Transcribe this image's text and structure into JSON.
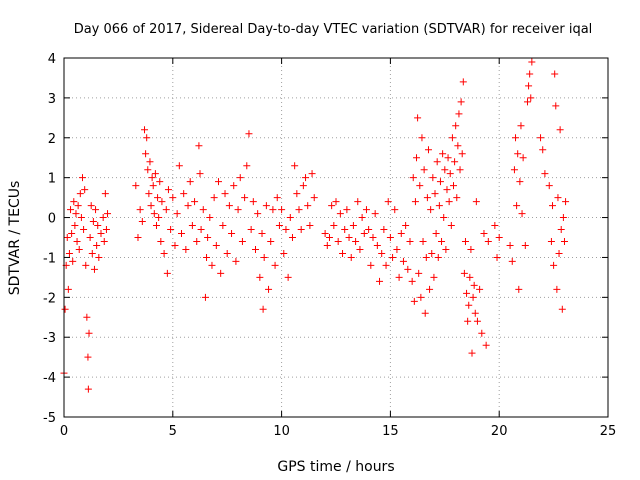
{
  "chart_data": {
    "type": "scatter",
    "title": "Day 066 of 2017, Sidereal Day-to-day VTEC variation (SDTVAR) for receiver iqal",
    "xlabel": "GPS time / hours",
    "ylabel": "SDTVAR / TECUs",
    "xlim": [
      0,
      25
    ],
    "ylim": [
      -5,
      4
    ],
    "xticks": [
      "0",
      "5",
      "10",
      "15",
      "20",
      "25"
    ],
    "yticks": [
      "4",
      "3",
      "2",
      "1",
      "0",
      "-1",
      "-2",
      "-3",
      "-4",
      "-5"
    ],
    "grid": true,
    "marker": "plus",
    "color": "#ff0000",
    "series": [
      {
        "name": "SDTVAR",
        "points": [
          [
            0.0,
            -3.9
          ],
          [
            0.05,
            -2.3
          ],
          [
            0.1,
            -1.2
          ],
          [
            0.15,
            -0.5
          ],
          [
            0.2,
            -1.8
          ],
          [
            0.25,
            -0.9
          ],
          [
            0.3,
            0.2
          ],
          [
            0.35,
            -0.4
          ],
          [
            0.4,
            -1.1
          ],
          [
            0.45,
            0.4
          ],
          [
            0.5,
            -0.2
          ],
          [
            0.55,
            0.1
          ],
          [
            0.6,
            -0.6
          ],
          [
            0.65,
            0.3
          ],
          [
            0.7,
            -0.8
          ],
          [
            0.75,
            0.6
          ],
          [
            0.8,
            0.0
          ],
          [
            0.85,
            1.0
          ],
          [
            0.9,
            -0.3
          ],
          [
            0.95,
            0.7
          ],
          [
            1.0,
            -1.2
          ],
          [
            1.05,
            -2.5
          ],
          [
            1.1,
            -3.5
          ],
          [
            1.12,
            -4.3
          ],
          [
            1.15,
            -2.9
          ],
          [
            1.2,
            -0.5
          ],
          [
            1.25,
            0.3
          ],
          [
            1.3,
            -0.9
          ],
          [
            1.35,
            -0.1
          ],
          [
            1.4,
            -1.3
          ],
          [
            1.45,
            0.2
          ],
          [
            1.5,
            -0.7
          ],
          [
            1.55,
            -0.2
          ],
          [
            1.6,
            -1.0
          ],
          [
            1.7,
            -0.4
          ],
          [
            1.8,
            0.0
          ],
          [
            1.85,
            -0.6
          ],
          [
            1.9,
            0.6
          ],
          [
            1.95,
            -0.3
          ],
          [
            2.0,
            0.1
          ],
          [
            3.3,
            0.8
          ],
          [
            3.4,
            -0.5
          ],
          [
            3.5,
            0.2
          ],
          [
            3.6,
            -0.1
          ],
          [
            3.7,
            2.2
          ],
          [
            3.75,
            1.6
          ],
          [
            3.8,
            2.0
          ],
          [
            3.85,
            1.2
          ],
          [
            3.9,
            0.6
          ],
          [
            3.95,
            1.4
          ],
          [
            4.0,
            0.3
          ],
          [
            4.05,
            1.0
          ],
          [
            4.1,
            0.8
          ],
          [
            4.15,
            0.1
          ],
          [
            4.2,
            1.1
          ],
          [
            4.25,
            -0.2
          ],
          [
            4.3,
            0.5
          ],
          [
            4.35,
            0.0
          ],
          [
            4.4,
            0.9
          ],
          [
            4.45,
            -0.6
          ],
          [
            4.5,
            0.4
          ],
          [
            4.6,
            -0.9
          ],
          [
            4.7,
            0.2
          ],
          [
            4.75,
            -1.4
          ],
          [
            4.8,
            0.7
          ],
          [
            4.9,
            -0.3
          ],
          [
            5.0,
            0.5
          ],
          [
            5.1,
            -0.7
          ],
          [
            5.2,
            0.1
          ],
          [
            5.3,
            1.3
          ],
          [
            5.4,
            -0.4
          ],
          [
            5.5,
            0.6
          ],
          [
            5.6,
            -0.8
          ],
          [
            5.7,
            0.3
          ],
          [
            5.8,
            0.9
          ],
          [
            5.9,
            -0.2
          ],
          [
            6.0,
            0.4
          ],
          [
            6.1,
            -0.6
          ],
          [
            6.2,
            1.8
          ],
          [
            6.25,
            1.1
          ],
          [
            6.3,
            -0.3
          ],
          [
            6.4,
            0.2
          ],
          [
            6.5,
            -2.0
          ],
          [
            6.55,
            -1.0
          ],
          [
            6.6,
            -0.5
          ],
          [
            6.7,
            0.0
          ],
          [
            6.8,
            -1.2
          ],
          [
            6.9,
            0.5
          ],
          [
            7.0,
            -0.7
          ],
          [
            7.1,
            0.9
          ],
          [
            7.2,
            -1.4
          ],
          [
            7.3,
            -0.2
          ],
          [
            7.4,
            0.6
          ],
          [
            7.5,
            -0.9
          ],
          [
            7.6,
            0.3
          ],
          [
            7.7,
            -0.4
          ],
          [
            7.8,
            0.8
          ],
          [
            7.9,
            -1.1
          ],
          [
            8.0,
            0.2
          ],
          [
            8.1,
            1.0
          ],
          [
            8.2,
            -0.6
          ],
          [
            8.3,
            0.5
          ],
          [
            8.4,
            1.3
          ],
          [
            8.5,
            2.1
          ],
          [
            8.6,
            -0.3
          ],
          [
            8.7,
            0.4
          ],
          [
            8.8,
            -0.8
          ],
          [
            8.9,
            0.1
          ],
          [
            9.0,
            -1.5
          ],
          [
            9.1,
            -0.4
          ],
          [
            9.15,
            -2.3
          ],
          [
            9.2,
            -1.0
          ],
          [
            9.3,
            0.3
          ],
          [
            9.4,
            -1.8
          ],
          [
            9.5,
            -0.6
          ],
          [
            9.6,
            0.2
          ],
          [
            9.7,
            -1.2
          ],
          [
            9.8,
            0.5
          ],
          [
            9.9,
            -0.2
          ],
          [
            10.0,
            0.2
          ],
          [
            10.1,
            -0.9
          ],
          [
            10.2,
            -0.3
          ],
          [
            10.3,
            -1.5
          ],
          [
            10.4,
            0.0
          ],
          [
            10.5,
            -0.5
          ],
          [
            10.6,
            1.3
          ],
          [
            10.7,
            0.6
          ],
          [
            10.8,
            0.2
          ],
          [
            10.9,
            -0.3
          ],
          [
            11.0,
            0.8
          ],
          [
            11.1,
            1.0
          ],
          [
            11.2,
            0.3
          ],
          [
            11.3,
            -0.2
          ],
          [
            11.4,
            1.1
          ],
          [
            11.5,
            0.5
          ],
          [
            12.0,
            -0.4
          ],
          [
            12.1,
            -0.7
          ],
          [
            12.2,
            -0.5
          ],
          [
            12.3,
            0.3
          ],
          [
            12.4,
            -0.2
          ],
          [
            12.5,
            0.4
          ],
          [
            12.6,
            -0.6
          ],
          [
            12.7,
            0.1
          ],
          [
            12.8,
            -0.9
          ],
          [
            12.9,
            -0.3
          ],
          [
            13.0,
            0.2
          ],
          [
            13.1,
            -0.5
          ],
          [
            13.2,
            -1.0
          ],
          [
            13.3,
            -0.2
          ],
          [
            13.4,
            -0.6
          ],
          [
            13.5,
            0.4
          ],
          [
            13.6,
            -0.8
          ],
          [
            13.7,
            0.0
          ],
          [
            13.8,
            -0.4
          ],
          [
            13.9,
            0.2
          ],
          [
            14.0,
            -0.3
          ],
          [
            14.1,
            -1.2
          ],
          [
            14.2,
            -0.5
          ],
          [
            14.3,
            0.1
          ],
          [
            14.4,
            -0.7
          ],
          [
            14.5,
            -1.6
          ],
          [
            14.6,
            -0.9
          ],
          [
            14.7,
            -0.3
          ],
          [
            14.8,
            -1.2
          ],
          [
            14.9,
            0.4
          ],
          [
            15.0,
            -0.5
          ],
          [
            15.1,
            -1.0
          ],
          [
            15.2,
            0.2
          ],
          [
            15.3,
            -0.8
          ],
          [
            15.4,
            -1.5
          ],
          [
            15.5,
            -0.4
          ],
          [
            15.6,
            -1.1
          ],
          [
            15.7,
            -0.2
          ],
          [
            15.8,
            -1.3
          ],
          [
            15.9,
            -0.6
          ],
          [
            16.0,
            -1.6
          ],
          [
            16.05,
            1.0
          ],
          [
            16.1,
            -2.1
          ],
          [
            16.15,
            0.4
          ],
          [
            16.2,
            1.5
          ],
          [
            16.25,
            2.5
          ],
          [
            16.3,
            -1.4
          ],
          [
            16.35,
            0.8
          ],
          [
            16.4,
            -2.0
          ],
          [
            16.45,
            2.0
          ],
          [
            16.5,
            -0.6
          ],
          [
            16.55,
            1.2
          ],
          [
            16.6,
            -2.4
          ],
          [
            16.65,
            -1.0
          ],
          [
            16.7,
            0.5
          ],
          [
            16.75,
            1.7
          ],
          [
            16.8,
            -1.8
          ],
          [
            16.85,
            0.2
          ],
          [
            16.9,
            -0.9
          ],
          [
            16.95,
            1.0
          ],
          [
            17.0,
            -1.5
          ],
          [
            17.05,
            0.6
          ],
          [
            17.1,
            -0.4
          ],
          [
            17.15,
            1.4
          ],
          [
            17.2,
            -1.0
          ],
          [
            17.25,
            0.3
          ],
          [
            17.3,
            0.9
          ],
          [
            17.35,
            -0.6
          ],
          [
            17.4,
            1.6
          ],
          [
            17.45,
            0.0
          ],
          [
            17.5,
            1.2
          ],
          [
            17.55,
            -0.8
          ],
          [
            17.6,
            0.7
          ],
          [
            17.65,
            1.5
          ],
          [
            17.7,
            0.4
          ],
          [
            17.75,
            1.1
          ],
          [
            17.8,
            -0.2
          ],
          [
            17.85,
            2.0
          ],
          [
            17.9,
            0.8
          ],
          [
            17.95,
            1.4
          ],
          [
            18.0,
            2.3
          ],
          [
            18.05,
            0.5
          ],
          [
            18.1,
            1.8
          ],
          [
            18.15,
            2.6
          ],
          [
            18.2,
            1.2
          ],
          [
            18.25,
            2.9
          ],
          [
            18.3,
            1.6
          ],
          [
            18.35,
            3.4
          ],
          [
            18.4,
            -1.4
          ],
          [
            18.45,
            -0.6
          ],
          [
            18.5,
            -1.9
          ],
          [
            18.55,
            -2.6
          ],
          [
            18.6,
            -2.2
          ],
          [
            18.65,
            -1.5
          ],
          [
            18.7,
            -0.8
          ],
          [
            18.75,
            -3.4
          ],
          [
            18.8,
            -2.0
          ],
          [
            18.85,
            -1.7
          ],
          [
            18.9,
            -2.4
          ],
          [
            18.95,
            0.4
          ],
          [
            19.0,
            -2.6
          ],
          [
            19.1,
            -1.8
          ],
          [
            19.2,
            -2.9
          ],
          [
            19.3,
            -0.4
          ],
          [
            19.4,
            -3.2
          ],
          [
            19.5,
            -0.6
          ],
          [
            19.8,
            -0.2
          ],
          [
            19.9,
            -1.0
          ],
          [
            20.0,
            -0.5
          ],
          [
            20.5,
            -0.7
          ],
          [
            20.6,
            -1.1
          ],
          [
            20.7,
            1.2
          ],
          [
            20.75,
            2.0
          ],
          [
            20.8,
            0.3
          ],
          [
            20.85,
            1.6
          ],
          [
            20.9,
            -1.8
          ],
          [
            20.95,
            0.9
          ],
          [
            21.0,
            2.3
          ],
          [
            21.05,
            0.1
          ],
          [
            21.1,
            1.5
          ],
          [
            21.2,
            -0.7
          ],
          [
            21.3,
            2.9
          ],
          [
            21.35,
            3.3
          ],
          [
            21.4,
            3.6
          ],
          [
            21.45,
            3.0
          ],
          [
            21.5,
            3.9
          ],
          [
            21.9,
            2.0
          ],
          [
            22.0,
            1.7
          ],
          [
            22.1,
            1.1
          ],
          [
            22.3,
            0.8
          ],
          [
            22.4,
            -0.6
          ],
          [
            22.45,
            0.3
          ],
          [
            22.5,
            -1.2
          ],
          [
            22.55,
            3.6
          ],
          [
            22.6,
            2.8
          ],
          [
            22.65,
            -1.8
          ],
          [
            22.7,
            0.5
          ],
          [
            22.75,
            -0.9
          ],
          [
            22.8,
            2.2
          ],
          [
            22.85,
            -0.3
          ],
          [
            22.9,
            -2.3
          ],
          [
            22.95,
            0.0
          ],
          [
            23.0,
            -0.6
          ],
          [
            23.05,
            0.4
          ]
        ]
      }
    ]
  }
}
